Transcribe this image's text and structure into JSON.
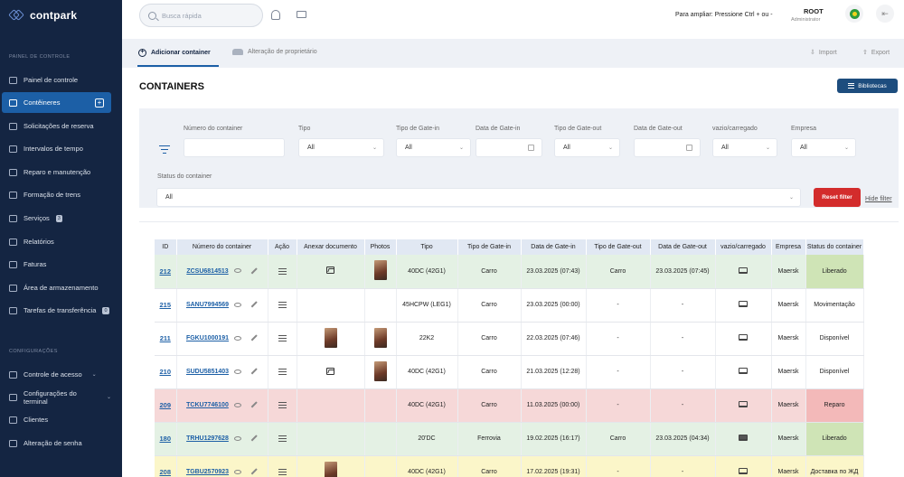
{
  "app": {
    "logo_text": "contpark"
  },
  "sidebar": {
    "section1_title": "PAINEL DE CONTROLE",
    "section2_title": "CONFIGURAÇÕES",
    "items": [
      {
        "label": "Painel de controle"
      },
      {
        "label": "Contêineres",
        "active": true
      },
      {
        "label": "Solicitações de reserva"
      },
      {
        "label": "Intervalos de tempo"
      },
      {
        "label": "Reparo e manutenção"
      },
      {
        "label": "Formação de trens"
      },
      {
        "label": "Serviços",
        "badge": "3"
      },
      {
        "label": "Relatórios"
      },
      {
        "label": "Faturas"
      },
      {
        "label": "Área de armazenamento"
      },
      {
        "label": "Tarefas de transferência",
        "badge": "0"
      }
    ],
    "config_items": [
      {
        "label": "Controle de acesso"
      },
      {
        "label": "Configurações do terminal"
      },
      {
        "label": "Clientes"
      },
      {
        "label": "Alteração de senha"
      }
    ]
  },
  "topbar": {
    "search_placeholder": "Busca rápida",
    "zoom_hint": "Para ampliar: Pressione Ctrl + ou -",
    "user_name": "ROOT",
    "user_role": "Administrator"
  },
  "tabs": {
    "add_container": "Adicionar container",
    "owner_change": "Alteração de proprietário",
    "import": "Import",
    "export": "Export"
  },
  "page": {
    "title": "CONTAINERS",
    "libraries_button": "Bibliotecas"
  },
  "filters": {
    "container_number_label": "Número do container",
    "type_label": "Tipo",
    "type_value": "All",
    "gatein_type_label": "Tipo de Gate-in",
    "gatein_type_value": "All",
    "gatein_date_label": "Data de Gate-in",
    "gateout_type_label": "Tipo de Gate-out",
    "gateout_type_value": "All",
    "gateout_date_label": "Data de Gate-out",
    "empty_loaded_label": "vazio/carregado",
    "empty_loaded_value": "All",
    "company_label": "Empresa",
    "company_value": "All",
    "status_label": "Status do container",
    "status_value": "All",
    "reset_button": "Reset filter",
    "hide_link": "Hide filter"
  },
  "table": {
    "headers": [
      "ID",
      "Número do container",
      "Ação",
      "Anexar documento",
      "Photos",
      "Tipo",
      "Tipo de Gate-in",
      "Data de Gate-in",
      "Tipo de Gate-out",
      "Data de Gate-out",
      "vazio/carregado",
      "Empresa",
      "Status do container"
    ],
    "rows": [
      {
        "id": "212",
        "number": "ZCSU6814513",
        "tone": "green",
        "doc": true,
        "photo": true,
        "type": "40DC (42G1)",
        "gatein_type": "Carro",
        "gatein_date": "23.03.2025 (07:43)",
        "gateout_type": "Carro",
        "gateout_date": "23.03.2025 (07:45)",
        "load": "laptop",
        "company": "Maersk",
        "status": "Liberado",
        "status_tone": "liberado"
      },
      {
        "id": "215",
        "number": "SANU7994569",
        "tone": "white",
        "doc": false,
        "photo": false,
        "type": "45HCPW (LEG1)",
        "gatein_type": "Carro",
        "gatein_date": "23.03.2025 (00:00)",
        "gateout_type": "-",
        "gateout_date": "-",
        "load": "laptop",
        "company": "Maersk",
        "status": "Movimentação",
        "status_tone": ""
      },
      {
        "id": "211",
        "number": "FGKU1000191",
        "tone": "white",
        "doc": "thumb",
        "photo": true,
        "type": "22K2",
        "gatein_type": "Carro",
        "gatein_date": "22.03.2025 (07:46)",
        "gateout_type": "-",
        "gateout_date": "-",
        "load": "laptop",
        "company": "Maersk",
        "status": "Disponível",
        "status_tone": ""
      },
      {
        "id": "210",
        "number": "SUDU5851403",
        "tone": "white",
        "doc": true,
        "photo": true,
        "type": "40DC (42G1)",
        "gatein_type": "Carro",
        "gatein_date": "21.03.2025 (12:28)",
        "gateout_type": "-",
        "gateout_date": "-",
        "load": "laptop",
        "company": "Maersk",
        "status": "Disponível",
        "status_tone": ""
      },
      {
        "id": "209",
        "number": "TCKU7746100",
        "tone": "red",
        "doc": false,
        "photo": false,
        "type": "40DC (42G1)",
        "gatein_type": "Carro",
        "gatein_date": "11.03.2025 (00:00)",
        "gateout_type": "-",
        "gateout_date": "-",
        "load": "laptop",
        "company": "Maersk",
        "status": "Reparo",
        "status_tone": "reparo"
      },
      {
        "id": "180",
        "number": "TRHU1297628",
        "tone": "green",
        "doc": false,
        "photo": false,
        "type": "20'DC",
        "gatein_type": "Ferrovia",
        "gatein_date": "19.02.2025 (16:17)",
        "gateout_type": "Carro",
        "gateout_date": "23.03.2025 (04:34)",
        "load": "laptop-filled",
        "company": "Maersk",
        "status": "Liberado",
        "status_tone": "liberado"
      },
      {
        "id": "208",
        "number": "TGBU2570923",
        "tone": "yellow",
        "doc": "thumb",
        "photo": false,
        "type": "40DC (42G1)",
        "gatein_type": "Carro",
        "gatein_date": "17.02.2025 (19:31)",
        "gateout_type": "-",
        "gateout_date": "-",
        "load": "laptop",
        "company": "Maersk",
        "status": "Доставка по ЖД",
        "status_tone": ""
      }
    ]
  }
}
